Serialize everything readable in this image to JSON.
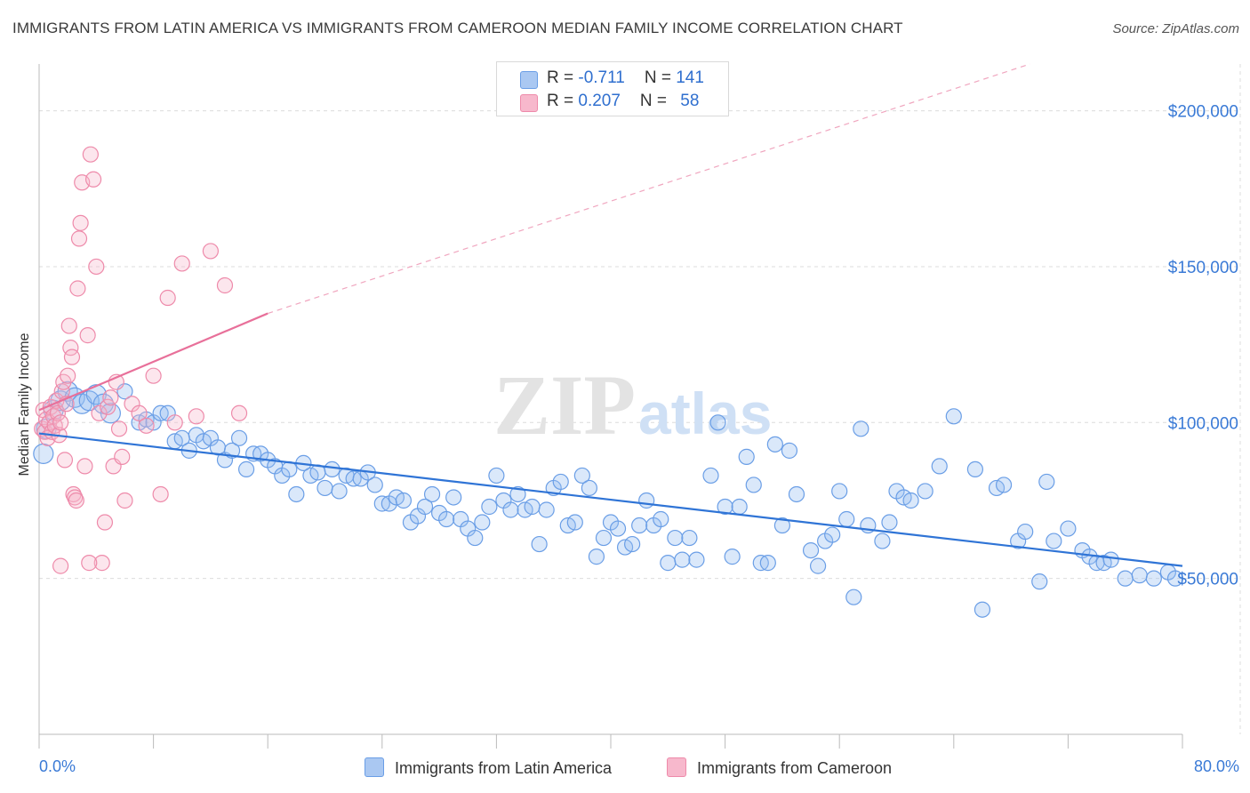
{
  "title": "IMMIGRANTS FROM LATIN AMERICA VS IMMIGRANTS FROM CAMEROON MEDIAN FAMILY INCOME CORRELATION CHART",
  "source": "Source: ZipAtlas.com",
  "watermark": {
    "zip": "ZIP",
    "atlas": "atlas"
  },
  "legend": {
    "rows": [
      {
        "r_label": "R = ",
        "r_value": "-0.711",
        "n_label": "N = ",
        "n_value": "141",
        "color": "#aac8f2",
        "border": "#6a9ee6"
      },
      {
        "r_label": "R = ",
        "r_value": "0.207",
        "n_label": "N = ",
        "n_value": "58",
        "color": "#f7b8cc",
        "border": "#ee8aaa"
      }
    ]
  },
  "bottom_legend": {
    "items": [
      {
        "label": "Immigrants from Latin America",
        "color": "#aac8f2",
        "border": "#6a9ee6"
      },
      {
        "label": "Immigrants from Cameroon",
        "color": "#f7b8cc",
        "border": "#ee8aaa"
      }
    ]
  },
  "colors": {
    "blue_line": "#2f74d6",
    "pink_line": "#e8709a",
    "blue_fill": "rgba(150,190,240,0.35)",
    "blue_stroke": "#6a9ee6",
    "pink_fill": "rgba(247,184,204,0.35)",
    "pink_stroke": "#ee8aaa",
    "grid": "#dcdcdc",
    "tick_text": "#3a7ad6"
  },
  "chart_data": {
    "type": "scatter",
    "title": "IMMIGRANTS FROM LATIN AMERICA VS IMMIGRANTS FROM CAMEROON MEDIAN FAMILY INCOME CORRELATION CHART",
    "xlabel": "",
    "ylabel": "Median Family Income",
    "xlim": [
      0,
      80
    ],
    "ylim": [
      0,
      215000
    ],
    "x_tick_labels": [
      "0.0%",
      "80.0%"
    ],
    "y_ticks": [
      50000,
      100000,
      150000,
      200000
    ],
    "y_tick_labels": [
      "$50,000",
      "$100,000",
      "$150,000",
      "$200,000"
    ],
    "grid": true,
    "legend_position": "top-center",
    "series": [
      {
        "name": "Immigrants from Latin America",
        "r": -0.711,
        "n": 141,
        "trend": {
          "x0": 0,
          "y0": 96500,
          "x1": 80,
          "y1": 54000
        },
        "points": [
          [
            0.3,
            90000
          ],
          [
            0.5,
            98000
          ],
          [
            1,
            104000
          ],
          [
            1.5,
            107000
          ],
          [
            2,
            110000
          ],
          [
            2.5,
            108000
          ],
          [
            3,
            106000
          ],
          [
            3.5,
            107000
          ],
          [
            4,
            109000
          ],
          [
            4.5,
            106000
          ],
          [
            5,
            103000
          ],
          [
            6,
            110000
          ],
          [
            7,
            100000
          ],
          [
            7.5,
            101000
          ],
          [
            8,
            100000
          ],
          [
            8.5,
            103000
          ],
          [
            9,
            103000
          ],
          [
            9.5,
            94000
          ],
          [
            10,
            95000
          ],
          [
            10.5,
            91000
          ],
          [
            11,
            96000
          ],
          [
            11.5,
            94000
          ],
          [
            12,
            95000
          ],
          [
            12.5,
            92000
          ],
          [
            13,
            88000
          ],
          [
            13.5,
            91000
          ],
          [
            14,
            95000
          ],
          [
            14.5,
            85000
          ],
          [
            15,
            90000
          ],
          [
            15.5,
            90000
          ],
          [
            16,
            88000
          ],
          [
            16.5,
            86000
          ],
          [
            17,
            83000
          ],
          [
            17.5,
            85000
          ],
          [
            18,
            77000
          ],
          [
            18.5,
            87000
          ],
          [
            19,
            83000
          ],
          [
            19.5,
            84000
          ],
          [
            20,
            79000
          ],
          [
            20.5,
            85000
          ],
          [
            21,
            78000
          ],
          [
            21.5,
            83000
          ],
          [
            22,
            82000
          ],
          [
            22.5,
            82000
          ],
          [
            23,
            84000
          ],
          [
            23.5,
            80000
          ],
          [
            24,
            74000
          ],
          [
            24.5,
            74000
          ],
          [
            25,
            76000
          ],
          [
            25.5,
            75000
          ],
          [
            26,
            68000
          ],
          [
            26.5,
            70000
          ],
          [
            27,
            73000
          ],
          [
            27.5,
            77000
          ],
          [
            28,
            71000
          ],
          [
            28.5,
            69000
          ],
          [
            29,
            76000
          ],
          [
            29.5,
            69000
          ],
          [
            30,
            66000
          ],
          [
            30.5,
            63000
          ],
          [
            31,
            68000
          ],
          [
            31.5,
            73000
          ],
          [
            32,
            83000
          ],
          [
            32.5,
            75000
          ],
          [
            33,
            72000
          ],
          [
            33.5,
            77000
          ],
          [
            34,
            72000
          ],
          [
            34.5,
            73000
          ],
          [
            35,
            61000
          ],
          [
            35.5,
            72000
          ],
          [
            36,
            79000
          ],
          [
            36.5,
            81000
          ],
          [
            37,
            67000
          ],
          [
            37.5,
            68000
          ],
          [
            38,
            83000
          ],
          [
            38.5,
            79000
          ],
          [
            39,
            57000
          ],
          [
            39.5,
            63000
          ],
          [
            40,
            68000
          ],
          [
            40.5,
            66000
          ],
          [
            41,
            60000
          ],
          [
            41.5,
            61000
          ],
          [
            42,
            67000
          ],
          [
            42.5,
            75000
          ],
          [
            43,
            67000
          ],
          [
            43.5,
            69000
          ],
          [
            44,
            55000
          ],
          [
            44.5,
            63000
          ],
          [
            45,
            56000
          ],
          [
            45.5,
            63000
          ],
          [
            46,
            56000
          ],
          [
            47,
            83000
          ],
          [
            47.5,
            100000
          ],
          [
            48,
            73000
          ],
          [
            48.5,
            57000
          ],
          [
            49,
            73000
          ],
          [
            49.5,
            89000
          ],
          [
            50,
            80000
          ],
          [
            50.5,
            55000
          ],
          [
            51,
            55000
          ],
          [
            51.5,
            93000
          ],
          [
            52,
            67000
          ],
          [
            52.5,
            91000
          ],
          [
            53,
            77000
          ],
          [
            54,
            59000
          ],
          [
            54.5,
            54000
          ],
          [
            55,
            62000
          ],
          [
            55.5,
            64000
          ],
          [
            56,
            78000
          ],
          [
            56.5,
            69000
          ],
          [
            57,
            44000
          ],
          [
            57.5,
            98000
          ],
          [
            58,
            67000
          ],
          [
            59,
            62000
          ],
          [
            59.5,
            68000
          ],
          [
            60,
            78000
          ],
          [
            60.5,
            76000
          ],
          [
            61,
            75000
          ],
          [
            62,
            78000
          ],
          [
            63,
            86000
          ],
          [
            64,
            102000
          ],
          [
            65.5,
            85000
          ],
          [
            66,
            40000
          ],
          [
            67,
            79000
          ],
          [
            67.5,
            80000
          ],
          [
            68.5,
            62000
          ],
          [
            69,
            65000
          ],
          [
            70,
            49000
          ],
          [
            70.5,
            81000
          ],
          [
            71,
            62000
          ],
          [
            72,
            66000
          ],
          [
            73,
            59000
          ],
          [
            73.5,
            57000
          ],
          [
            74,
            55000
          ],
          [
            74.5,
            55000
          ],
          [
            75,
            56000
          ],
          [
            76,
            50000
          ],
          [
            77,
            51000
          ],
          [
            78,
            50000
          ],
          [
            79,
            52000
          ],
          [
            79.5,
            50000
          ]
        ]
      },
      {
        "name": "Immigrants from Cameroon",
        "r": 0.207,
        "n": 58,
        "trend": {
          "x0": 0,
          "y0": 104000,
          "x1": 16,
          "y1": 135000,
          "x_dash_end": 80,
          "y_dash_end": 231000
        },
        "points": [
          [
            0.2,
            98000
          ],
          [
            0.3,
            104000
          ],
          [
            0.4,
            97000
          ],
          [
            0.5,
            101000
          ],
          [
            0.6,
            95000
          ],
          [
            0.7,
            100000
          ],
          [
            0.8,
            105000
          ],
          [
            0.9,
            97000
          ],
          [
            1,
            102000
          ],
          [
            1.1,
            99000
          ],
          [
            1.2,
            107000
          ],
          [
            1.3,
            103000
          ],
          [
            1.4,
            96000
          ],
          [
            1.5,
            100000
          ],
          [
            1.6,
            110000
          ],
          [
            1.7,
            113000
          ],
          [
            1.8,
            88000
          ],
          [
            1.9,
            106000
          ],
          [
            2,
            115000
          ],
          [
            2.1,
            131000
          ],
          [
            2.2,
            124000
          ],
          [
            2.3,
            121000
          ],
          [
            2.4,
            77000
          ],
          [
            2.5,
            76000
          ],
          [
            2.6,
            75000
          ],
          [
            2.7,
            143000
          ],
          [
            2.8,
            159000
          ],
          [
            2.9,
            164000
          ],
          [
            3,
            177000
          ],
          [
            3.2,
            86000
          ],
          [
            3.4,
            128000
          ],
          [
            3.6,
            186000
          ],
          [
            3.8,
            178000
          ],
          [
            4,
            150000
          ],
          [
            4.2,
            103000
          ],
          [
            4.4,
            55000
          ],
          [
            4.6,
            68000
          ],
          [
            4.8,
            105000
          ],
          [
            5,
            108000
          ],
          [
            5.2,
            86000
          ],
          [
            5.4,
            113000
          ],
          [
            5.6,
            98000
          ],
          [
            5.8,
            89000
          ],
          [
            6,
            75000
          ],
          [
            6.5,
            106000
          ],
          [
            7,
            103000
          ],
          [
            7.5,
            99000
          ],
          [
            8,
            115000
          ],
          [
            8.5,
            77000
          ],
          [
            9,
            140000
          ],
          [
            9.5,
            100000
          ],
          [
            10,
            151000
          ],
          [
            11,
            102000
          ],
          [
            12,
            155000
          ],
          [
            13,
            144000
          ],
          [
            14,
            103000
          ],
          [
            1.5,
            54000
          ],
          [
            3.5,
            55000
          ]
        ]
      }
    ]
  }
}
